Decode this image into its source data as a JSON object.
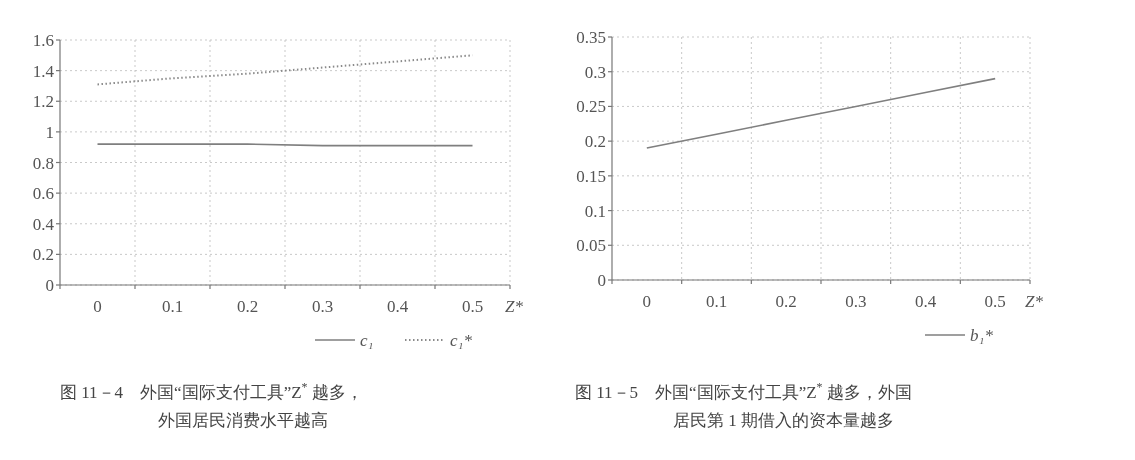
{
  "chart_data": [
    {
      "type": "line",
      "categories": [
        "0",
        "0.1",
        "0.2",
        "0.3",
        "0.4",
        "0.5"
      ],
      "xlabel": "Z*",
      "ylim": [
        0,
        1.6
      ],
      "yticks": [
        0,
        0.2,
        0.4,
        0.6,
        0.8,
        {
          "value": 1,
          "label": "1"
        },
        1.2,
        1.4,
        1.6
      ],
      "grid": true,
      "legend": "bottom right",
      "series": [
        {
          "name": "c₁",
          "color": "#7f7f7f",
          "line_style": "solid",
          "values": [
            0.92,
            0.92,
            0.92,
            0.91,
            0.91,
            0.91
          ]
        },
        {
          "name": "c₁*",
          "color": "#8a8a8a",
          "line_style": "dotted",
          "values": [
            1.31,
            1.35,
            1.38,
            1.42,
            1.46,
            1.5
          ]
        }
      ],
      "annotations": [
        "图 11－4　外国“国际支付工具”Z$^{*}$ 越多，",
        "外国居民消费水平越高"
      ]
    },
    {
      "type": "line",
      "categories": [
        "0",
        "0.1",
        "0.2",
        "0.3",
        "0.4",
        "0.5"
      ],
      "xlabel": "Z*",
      "ylim": [
        0,
        0.35
      ],
      "yticks": [
        0,
        0.05,
        0.1,
        0.15,
        0.2,
        0.25,
        0.3,
        0.35
      ],
      "grid": true,
      "legend": "bottom right",
      "series": [
        {
          "name": "b₁*",
          "color": "#7f7f7f",
          "line_style": "solid",
          "values": [
            0.19,
            0.21,
            0.23,
            0.25,
            0.27,
            0.29
          ]
        }
      ],
      "annotations": [
        "图 11－5　外国“国际支付工具”Z$^{*}$ 越多，外国",
        "居民第 1 期借入的资本量越多"
      ]
    }
  ]
}
